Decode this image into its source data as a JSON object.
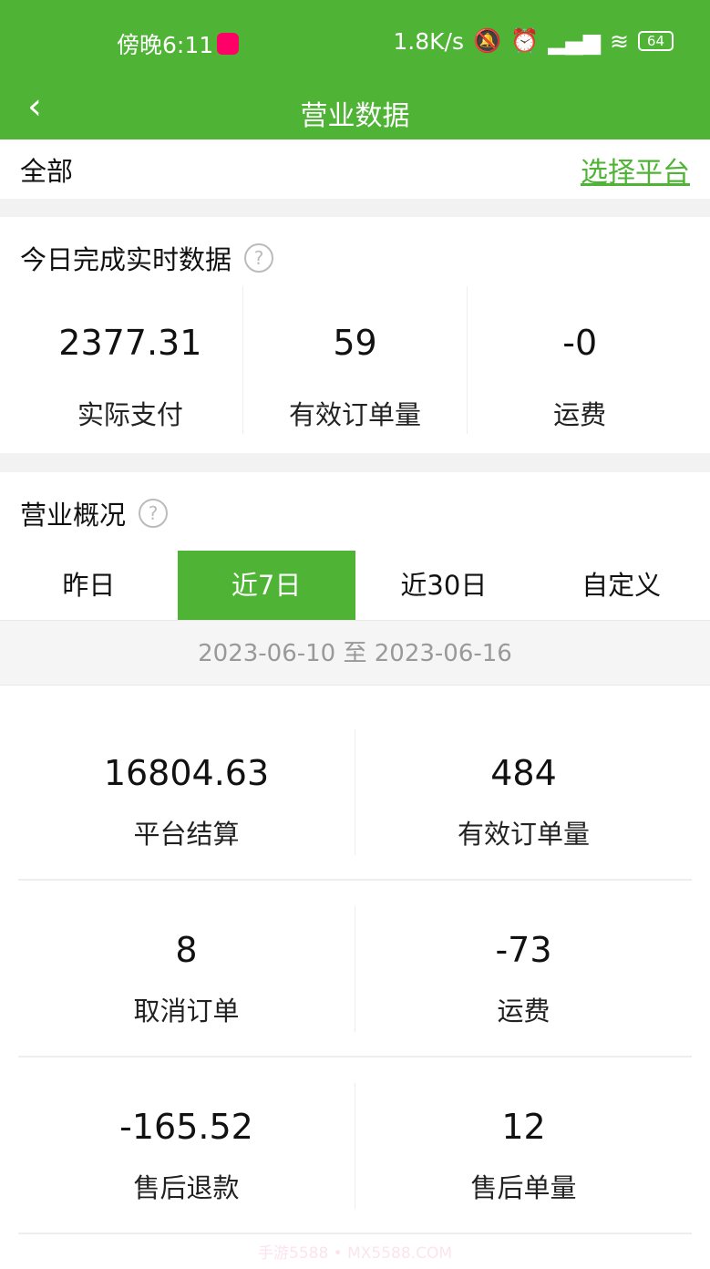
{
  "status_bar": {
    "time": "傍晚6:11",
    "speed": "1.8K/s",
    "battery": "64"
  },
  "nav": {
    "title": "营业数据",
    "back": "‹"
  },
  "filter": {
    "current": "全部",
    "select_platform": "选择平台"
  },
  "today": {
    "title": "今日完成实时数据",
    "help": "?",
    "stats": [
      {
        "value": "2377.31",
        "label": "实际支付"
      },
      {
        "value": "59",
        "label": "有效订单量"
      },
      {
        "value": "-0",
        "label": "运费"
      }
    ]
  },
  "overview": {
    "title": "营业概况",
    "help": "?",
    "tabs": [
      {
        "label": "昨日"
      },
      {
        "label": "近7日",
        "active": true
      },
      {
        "label": "近30日"
      },
      {
        "label": "自定义"
      }
    ],
    "date_range": "2023-06-10 至 2023-06-16",
    "stats": [
      {
        "value": "16804.63",
        "label": "平台结算"
      },
      {
        "value": "484",
        "label": "有效订单量"
      },
      {
        "value": "8",
        "label": "取消订单"
      },
      {
        "value": "-73",
        "label": "运费"
      },
      {
        "value": "-165.52",
        "label": "售后退款"
      },
      {
        "value": "12",
        "label": "售后单量"
      }
    ]
  },
  "watermark": "手游5588 • MX5588.COM",
  "colors": {
    "brand": "#4fb335"
  }
}
